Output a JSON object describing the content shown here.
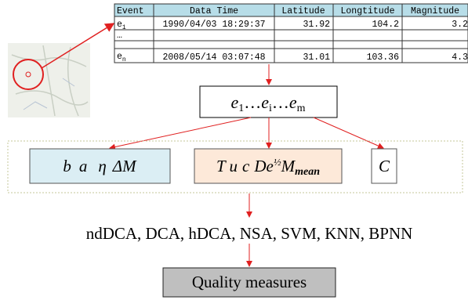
{
  "table": {
    "header": [
      "Event",
      "Data Time",
      "Latitude",
      "Longtitude",
      "Magnitude"
    ],
    "rows": [
      [
        {
          "base": "e",
          "sub": "1"
        },
        "1990/04/03 18:29:37",
        31.92,
        104.2,
        3.2
      ],
      [
        "…"
      ],
      [
        {
          "base": "e",
          "sub": "n"
        },
        "2008/05/14 03:07:48",
        31.01,
        103.36,
        4.3
      ]
    ]
  },
  "sequence": [
    {
      "base": "e",
      "sub": "1"
    },
    "…",
    {
      "base": "e",
      "sub": "i"
    },
    "…",
    {
      "base": "e",
      "sub": "m"
    }
  ],
  "features": [
    [
      "b",
      "a",
      "η",
      "ΔM"
    ],
    [
      "T",
      "u",
      "c",
      {
        "base": "De",
        "sup": "½"
      },
      {
        "base": "M",
        "sub": "mean"
      }
    ],
    [
      "C"
    ]
  ],
  "algorithms": "ndDCA, DCA, hDCA, NSA, SVM, KNN, BPNN",
  "output": "Quality measures"
}
